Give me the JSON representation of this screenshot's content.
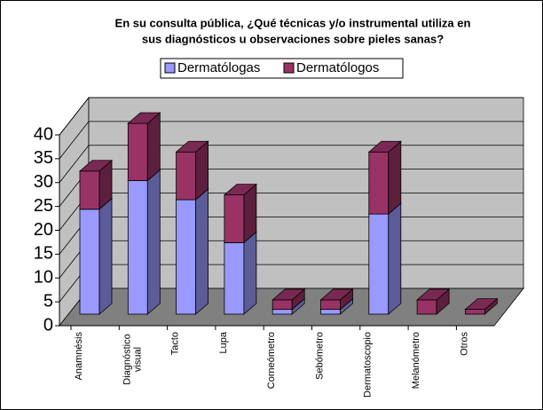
{
  "chart_data": {
    "type": "bar3d_stacked",
    "title": [
      "En su consulta pública, ¿Qué técnicas y/o instrumental utiliza en",
      "sus diagnósticos u observaciones sobre pieles sanas?"
    ],
    "categories": [
      "Anamnésis",
      "Diagnóstico visual",
      "Tacto",
      "Lupa",
      "Corneómetro",
      "Sebómetro",
      "Dermatoscopio",
      "Melanómetro",
      "Otros"
    ],
    "series": [
      {
        "name": "Dermatólogas",
        "color": "#9999ff",
        "values": [
          22,
          28,
          24,
          15,
          1,
          1,
          21,
          0,
          0
        ]
      },
      {
        "name": "Dermatólogos",
        "color": "#993366",
        "values": [
          8,
          12,
          10,
          10,
          2,
          2,
          13,
          3,
          1
        ]
      }
    ],
    "ylim": [
      0,
      40
    ],
    "yticks": [
      0,
      5,
      10,
      15,
      20,
      25,
      30,
      35,
      40
    ],
    "grid": true
  }
}
